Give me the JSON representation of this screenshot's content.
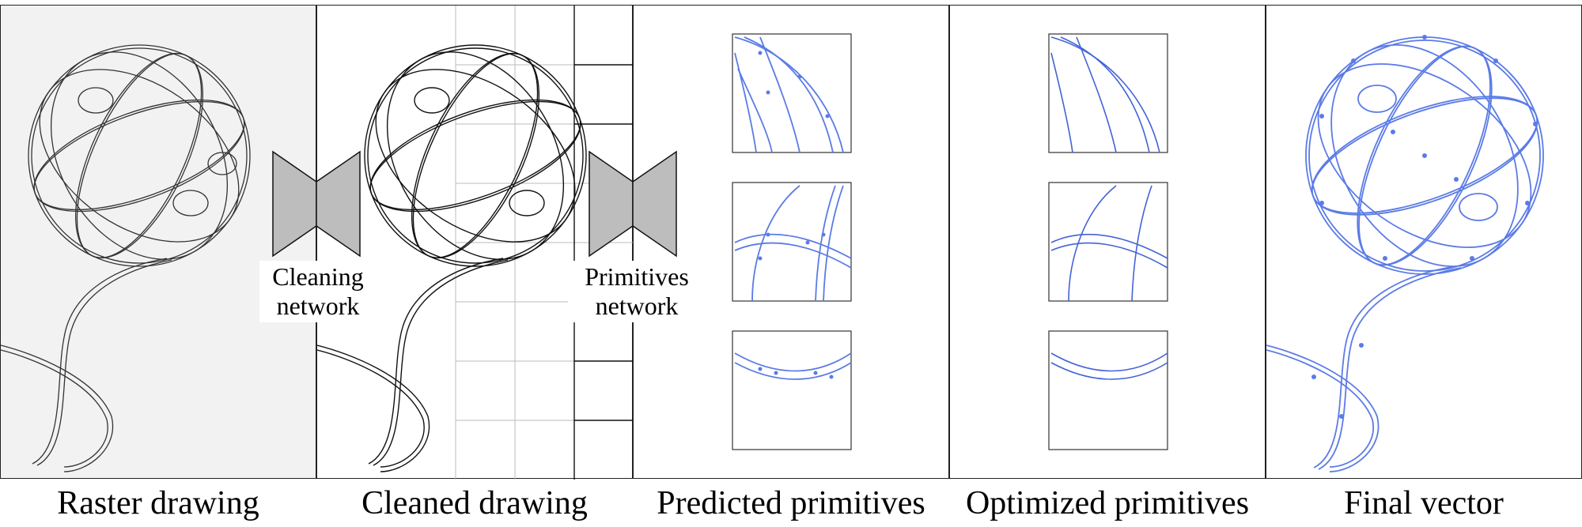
{
  "captions": {
    "raster": "Raster drawing",
    "cleaned": "Cleaned drawing",
    "predicted": "Predicted primitives",
    "optimized": "Optimized primitives",
    "final": "Final vector"
  },
  "networks": {
    "cleaning_line1": "Cleaning",
    "cleaning_line2": "network",
    "primitives_line1": "Primitives",
    "primitives_line2": "network"
  },
  "colors": {
    "stroke": "#222222",
    "vector": "#5b7be6",
    "network_fill": "#bdbdbd",
    "raster_bg": "#f2f2f2"
  }
}
